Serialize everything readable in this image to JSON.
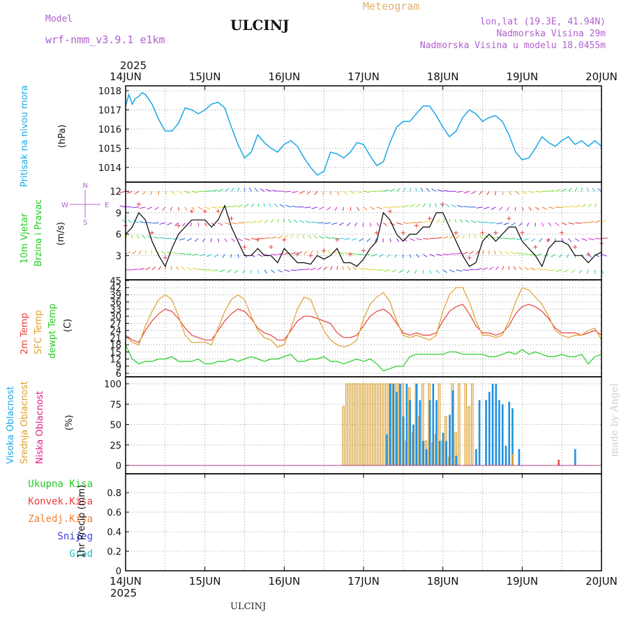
{
  "header": {
    "model_label": "Model",
    "model_name": "wrf-nmm_v3.9.1 e1km",
    "station": "ULCINJ",
    "chart_title": "Meteogram",
    "lonlat": "lon,lat (19.3E, 41.94N)",
    "elevation": "Nadmorska Visina 29m",
    "model_elevation": "Nadmorska Visina u modelu 18.0455m"
  },
  "footer": {
    "station": "ULCINJ",
    "watermark": "made by Angel"
  },
  "axis": {
    "year_top": "2025",
    "year_bottom": "2025",
    "date_ticks": [
      "14JUN",
      "15JUN",
      "16JUN",
      "17JUN",
      "18JUN",
      "19JUN",
      "20JUN"
    ]
  },
  "colors": {
    "pressure": "#1aa7e6",
    "temp2m": "#e8403a",
    "sfc": "#e0a030",
    "dewpt": "#22cc22",
    "wind_line": "#000000",
    "high_cloud": "#1e90e0",
    "mid_cloud": "#d8a030",
    "low_cloud": "#e0207a",
    "total_precip": "#22cc22",
    "conv_precip": "#e8403a",
    "frozen_precip": "#f08030",
    "snow": "#4040e0",
    "hail": "#20c0c0",
    "compass": "#b060d0"
  },
  "panels": {
    "pressure": {
      "label": "Pritisak na nivou mora",
      "unit": "(hPa)"
    },
    "wind": {
      "label1": "10m Vjetar",
      "label2": "Brzina i Pravac",
      "unit": "(m/s)",
      "compass": {
        "n": "N",
        "s": "S",
        "w": "W",
        "e": "E"
      }
    },
    "temp": {
      "label1": "2m Temp",
      "label2": "SFC Temp",
      "label3": "dewpt Temp",
      "unit": "(C)"
    },
    "cloud": {
      "label1": "Visoka Oblacnost",
      "label2": "Srednja Oblacnost",
      "label3": "Niska Oblacnost",
      "unit": "(%)"
    },
    "precip": {
      "unit": "1hr Precip (mm)",
      "legend": [
        "Ukupna Kisa",
        "Konvek.Kisa",
        "Zaledj.Kisa",
        "Snijeg",
        "Grad"
      ]
    }
  },
  "chart_data": [
    {
      "type": "line",
      "name": "pressure",
      "ylabel": "(hPa)",
      "ylim": [
        1013.2,
        1018.5
      ],
      "yticks": [
        1014,
        1015,
        1016,
        1017,
        1018
      ],
      "grid": true,
      "x_hours": [
        0,
        1,
        2,
        3,
        4,
        5,
        6,
        8,
        10,
        12,
        14,
        16,
        18,
        20,
        22,
        24,
        26,
        28,
        30,
        32,
        34,
        36,
        38,
        40,
        42,
        44,
        46,
        48,
        50,
        52,
        54,
        56,
        58,
        60,
        62,
        64,
        66,
        68,
        70,
        72,
        74,
        76,
        78,
        80,
        82,
        84,
        86,
        88,
        90,
        92,
        94,
        96,
        98,
        100,
        102,
        104,
        106,
        108,
        110,
        112,
        114,
        116,
        118,
        120,
        122,
        124,
        126,
        128,
        130,
        132,
        134,
        136,
        138,
        140,
        142,
        144
      ],
      "y": [
        1017.2,
        1017.8,
        1017.3,
        1017.6,
        1017.7,
        1017.9,
        1017.8,
        1017.3,
        1016.5,
        1015.9,
        1015.9,
        1016.3,
        1017.1,
        1017.0,
        1016.8,
        1017.0,
        1017.3,
        1017.4,
        1017.1,
        1016.1,
        1015.2,
        1014.5,
        1014.8,
        1015.7,
        1015.3,
        1015.0,
        1014.8,
        1015.2,
        1015.4,
        1015.1,
        1014.5,
        1014.0,
        1013.6,
        1013.8,
        1014.8,
        1014.7,
        1014.5,
        1014.8,
        1015.3,
        1015.2,
        1014.6,
        1014.1,
        1014.3,
        1015.3,
        1016.1,
        1016.4,
        1016.4,
        1016.8,
        1017.2,
        1017.2,
        1016.7,
        1016.1,
        1015.6,
        1015.9,
        1016.6,
        1017.0,
        1016.8,
        1016.4,
        1016.6,
        1016.7,
        1016.4,
        1015.7,
        1014.8,
        1014.4,
        1014.5,
        1015.0,
        1015.6,
        1015.3,
        1015.1,
        1015.4,
        1015.6,
        1015.2,
        1015.4,
        1015.1,
        1015.4,
        1015.1
      ]
    },
    {
      "type": "line",
      "name": "wind",
      "ylabel": "(m/s)",
      "ylim": [
        0,
        13
      ],
      "yticks": [
        3,
        6,
        9,
        12
      ],
      "grid": true,
      "x_hours": [
        0,
        2,
        4,
        6,
        8,
        10,
        12,
        14,
        16,
        18,
        20,
        22,
        24,
        26,
        28,
        30,
        32,
        34,
        36,
        38,
        40,
        42,
        44,
        46,
        48,
        50,
        52,
        54,
        56,
        58,
        60,
        62,
        64,
        66,
        68,
        70,
        72,
        74,
        76,
        78,
        80,
        82,
        84,
        86,
        88,
        90,
        92,
        94,
        96,
        98,
        100,
        102,
        104,
        106,
        108,
        110,
        112,
        114,
        116,
        118,
        120,
        122,
        124,
        126,
        128,
        130,
        132,
        134,
        136,
        138,
        140,
        142,
        144
      ],
      "y": [
        6,
        7,
        9,
        8,
        5,
        3,
        1.5,
        4,
        6,
        7,
        8,
        8,
        8,
        7,
        8,
        10,
        7,
        5,
        3,
        3,
        4,
        3,
        3,
        2,
        4,
        3,
        2,
        2,
        1.8,
        3,
        2.5,
        3,
        4,
        2,
        2,
        1.5,
        2.5,
        4,
        5,
        9,
        8,
        6,
        5,
        6,
        6,
        7,
        7,
        9,
        9,
        7,
        5,
        3,
        1.5,
        2,
        5,
        6,
        5,
        6,
        7,
        7,
        5,
        4,
        3,
        1.5,
        4,
        5,
        5,
        4.5,
        3,
        3,
        2,
        3,
        3.5
      ],
      "barbs": true
    },
    {
      "type": "line",
      "name": "temperature",
      "ylabel": "(C)",
      "ylim": [
        5,
        45
      ],
      "yticks": [
        6,
        9,
        12,
        15,
        18,
        21,
        24,
        27,
        30,
        33,
        36,
        39,
        42,
        45
      ],
      "grid": true,
      "x_hours": [
        0,
        2,
        4,
        6,
        8,
        10,
        12,
        14,
        16,
        18,
        20,
        22,
        24,
        26,
        28,
        30,
        32,
        34,
        36,
        38,
        40,
        42,
        44,
        46,
        48,
        50,
        52,
        54,
        56,
        58,
        60,
        62,
        64,
        66,
        68,
        70,
        72,
        74,
        76,
        78,
        80,
        82,
        84,
        86,
        88,
        90,
        92,
        94,
        96,
        98,
        100,
        102,
        104,
        106,
        108,
        110,
        112,
        114,
        116,
        118,
        120,
        122,
        124,
        126,
        128,
        130,
        132,
        134,
        136,
        138,
        140,
        142,
        144
      ],
      "series": [
        {
          "name": "2m Temp",
          "color": "#e8403a",
          "values": [
            22,
            20,
            19,
            24,
            28,
            31,
            33,
            32,
            29,
            25,
            22,
            21,
            20,
            20,
            24,
            28,
            31,
            33,
            32,
            29,
            25,
            23,
            22,
            20,
            20,
            24,
            28,
            30,
            30,
            29,
            28,
            27,
            23,
            21,
            21,
            22,
            26,
            30,
            32,
            33,
            31,
            27,
            23,
            22,
            23,
            22,
            22,
            23,
            28,
            32,
            34,
            35,
            31,
            26,
            23,
            23,
            22,
            23,
            26,
            31,
            34,
            35,
            34,
            32,
            29,
            25,
            23,
            23,
            23,
            22,
            23,
            24,
            22
          ]
        },
        {
          "name": "SFC Temp",
          "color": "#e0a030",
          "values": [
            22,
            19,
            18,
            26,
            32,
            37,
            39,
            37,
            30,
            22,
            19,
            19,
            19,
            18,
            25,
            32,
            37,
            39,
            37,
            30,
            24,
            21,
            20,
            17,
            18,
            25,
            33,
            38,
            37,
            30,
            24,
            20,
            18,
            17,
            18,
            20,
            29,
            35,
            38,
            40,
            36,
            28,
            22,
            21,
            22,
            21,
            20,
            22,
            32,
            39,
            42,
            42,
            36,
            28,
            22,
            22,
            21,
            22,
            28,
            36,
            42,
            41,
            38,
            35,
            30,
            24,
            22,
            21,
            22,
            22,
            24,
            25,
            20
          ]
        },
        {
          "name": "dewpt Temp",
          "color": "#22cc22",
          "values": [
            18,
            12,
            10,
            11,
            11,
            12,
            12,
            13,
            11,
            11,
            11,
            12,
            10,
            10,
            11,
            11,
            12,
            11,
            12,
            13,
            12,
            11,
            12,
            12,
            13,
            14,
            11,
            11,
            12,
            12,
            13,
            11,
            11,
            10,
            11,
            12,
            11,
            12,
            10,
            7,
            8,
            9,
            9,
            13,
            14,
            14,
            14,
            14,
            14,
            15,
            15,
            14,
            14,
            14,
            14,
            13,
            13,
            14,
            15,
            14,
            16,
            14,
            15,
            14,
            13,
            13,
            14,
            13,
            13,
            14,
            10,
            13,
            14
          ]
        }
      ]
    },
    {
      "type": "bar",
      "name": "cloud_cover",
      "ylabel": "(%)",
      "ylim": [
        0,
        100
      ],
      "yticks": [
        0,
        25,
        50,
        75,
        100
      ],
      "grid": true,
      "series": [
        {
          "name": "Srednja Oblacnost",
          "color": "#d8a030",
          "x_hours": [
            66,
            67,
            68,
            69,
            70,
            71,
            72,
            73,
            74,
            75,
            76,
            77,
            78,
            79,
            80,
            81,
            82,
            83,
            84,
            85,
            86,
            87,
            88,
            89,
            90,
            91,
            92,
            93,
            94,
            95,
            96,
            97,
            98,
            99,
            100,
            101,
            102,
            103,
            104,
            105,
            106,
            107,
            108,
            109,
            110,
            111,
            112,
            113,
            114,
            115,
            116,
            117,
            118,
            119,
            120,
            121,
            122,
            123,
            124,
            125,
            126,
            127,
            128,
            129,
            130,
            131,
            132,
            133,
            134,
            135,
            136,
            137,
            138,
            139,
            140,
            141,
            142,
            143,
            144
          ],
          "values": [
            72,
            100,
            100,
            100,
            100,
            100,
            100,
            100,
            100,
            100,
            100,
            100,
            100,
            100,
            100,
            100,
            100,
            100,
            100,
            30,
            95,
            40,
            100,
            60,
            100,
            30,
            100,
            28,
            38,
            100,
            30,
            60,
            10,
            100,
            40,
            100,
            0,
            100,
            72,
            100,
            0,
            0,
            0,
            0,
            0,
            0,
            0,
            0,
            0,
            0,
            0,
            0,
            0,
            0,
            0,
            0,
            0,
            0,
            0,
            0,
            0,
            0,
            0,
            0,
            0,
            0,
            0,
            0,
            0,
            0,
            0,
            0,
            0,
            0,
            0,
            0,
            0,
            0,
            0
          ]
        },
        {
          "name": "Visoka Oblacnost",
          "color": "#1e90e0",
          "x_hours": [
            79,
            80,
            81,
            82,
            83,
            84,
            85,
            86,
            87,
            88,
            89,
            90,
            91,
            92,
            93,
            94,
            95,
            96,
            97,
            98,
            99,
            100,
            101,
            102,
            103,
            104,
            105,
            106,
            107,
            108,
            109,
            110,
            111,
            112,
            113,
            114,
            115,
            116,
            117,
            118,
            119,
            120,
            121,
            122,
            123,
            124,
            125,
            126,
            127,
            128,
            129,
            130,
            131,
            132,
            133,
            134,
            135,
            136,
            137,
            138,
            139,
            140,
            141,
            142,
            143,
            144
          ],
          "values": [
            38,
            100,
            100,
            90,
            100,
            60,
            100,
            80,
            50,
            100,
            80,
            30,
            20,
            80,
            100,
            80,
            30,
            40,
            30,
            62,
            92,
            12,
            0,
            0,
            0,
            0,
            0,
            20,
            80,
            0,
            80,
            90,
            100,
            100,
            80,
            75,
            24,
            78,
            70,
            0,
            20,
            0,
            0,
            0,
            0,
            0,
            0,
            0,
            0,
            0,
            0,
            0,
            0,
            0,
            0,
            0,
            0,
            0,
            0,
            0,
            0,
            0,
            0,
            0,
            0,
            0
          ]
        },
        {
          "name": "Niska Oblacnost",
          "color": "#e0207a",
          "x_hours": [],
          "values": []
        }
      ],
      "extra_bars": [
        {
          "hour": 117,
          "value": 14,
          "color": "#d8a030"
        },
        {
          "hour": 131,
          "value": 7,
          "color": "#e8403a"
        },
        {
          "hour": 136,
          "value": 20,
          "color": "#1e90e0"
        }
      ]
    },
    {
      "type": "bar",
      "name": "precipitation",
      "ylabel": "1hr Precip (mm)",
      "ylim": [
        0,
        1
      ],
      "yticks": [
        0,
        0.2,
        0.4,
        0.6,
        0.8
      ],
      "grid": true,
      "series": [
        {
          "name": "Ukupna Kisa",
          "color": "#22cc22",
          "values": []
        },
        {
          "name": "Konvek.Kisa",
          "color": "#e8403a",
          "values": []
        },
        {
          "name": "Zaledj.Kisa",
          "color": "#f08030",
          "values": []
        },
        {
          "name": "Snijeg",
          "color": "#4040e0",
          "values": []
        },
        {
          "name": "Grad",
          "color": "#20c0c0",
          "values": []
        }
      ]
    }
  ]
}
